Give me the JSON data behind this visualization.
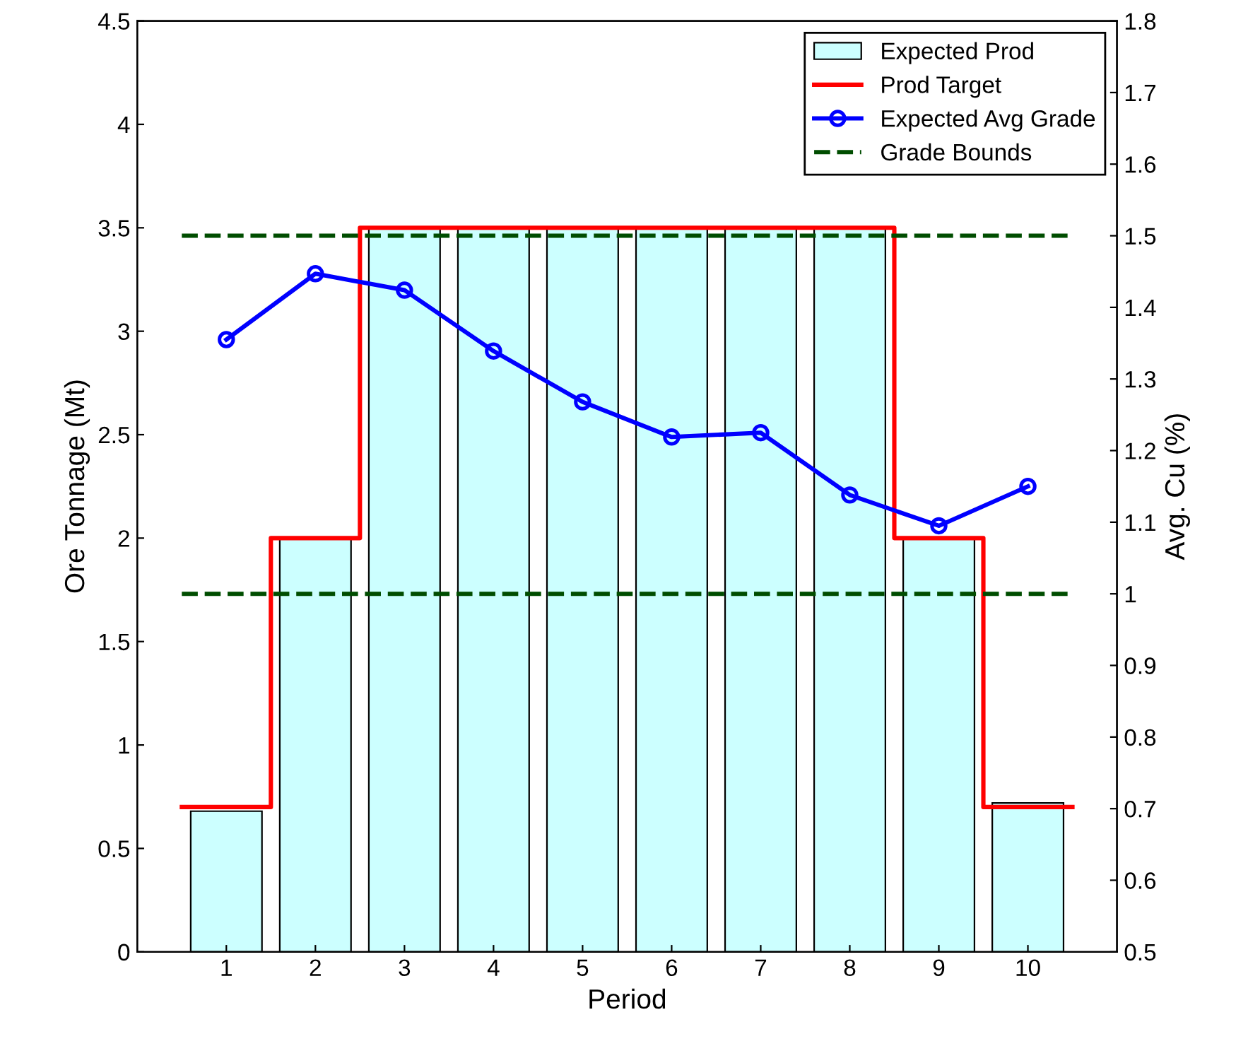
{
  "chart_data": {
    "type": "bar",
    "xlabel": "Period",
    "ylabel": "Ore Tonnage (Mt)",
    "y2label": "Avg. Cu (%)",
    "x": [
      1,
      2,
      3,
      4,
      5,
      6,
      7,
      8,
      9,
      10
    ],
    "xlim": [
      0,
      11
    ],
    "xticks": [
      1,
      2,
      3,
      4,
      5,
      6,
      7,
      8,
      9,
      10
    ],
    "ylim": [
      0,
      4.5
    ],
    "yticks": [
      0,
      0.5,
      1,
      1.5,
      2,
      2.5,
      3,
      3.5,
      4,
      4.5
    ],
    "y2lim": [
      0.5,
      1.8
    ],
    "y2ticks": [
      0.5,
      0.6,
      0.7,
      0.8,
      0.9,
      1,
      1.1,
      1.2,
      1.3,
      1.4,
      1.5,
      1.6,
      1.7,
      1.8
    ],
    "legend": "top right",
    "grid": false,
    "series": [
      {
        "name": "Expected Prod",
        "color": "#ccffff",
        "values": [
          0.68,
          2.0,
          3.5,
          3.5,
          3.5,
          3.5,
          3.5,
          3.5,
          2.0,
          0.72
        ]
      },
      {
        "name": "Prod Target",
        "type": "step",
        "color": "#ff0000",
        "x": [
          0.5,
          1.5,
          2.5,
          3.5,
          4.5,
          5.5,
          6.5,
          7.5,
          8.5,
          9.5,
          10.5
        ],
        "values": [
          0.7,
          2.0,
          3.5,
          3.5,
          3.5,
          3.5,
          3.5,
          3.5,
          2.0,
          0.7,
          0.7
        ]
      },
      {
        "name": "Expected Avg Grade",
        "type": "line",
        "axis": "y2",
        "color": "#0000ff",
        "marker": "circle",
        "values": [
          1.355,
          1.447,
          1.424,
          1.339,
          1.268,
          1.219,
          1.225,
          1.138,
          1.095,
          1.15
        ]
      },
      {
        "name": "Grade Bounds",
        "type": "line",
        "axis": "y2",
        "color": "#004d00",
        "line_style": "dashed",
        "x": [
          0.5,
          10.5
        ],
        "values": [
          1.5,
          1.5
        ]
      },
      {
        "type": "line",
        "axis": "y2",
        "color": "#004d00",
        "line_style": "dashed",
        "x": [
          0.5,
          10.5
        ],
        "values": [
          1.0,
          1.0
        ]
      }
    ]
  }
}
